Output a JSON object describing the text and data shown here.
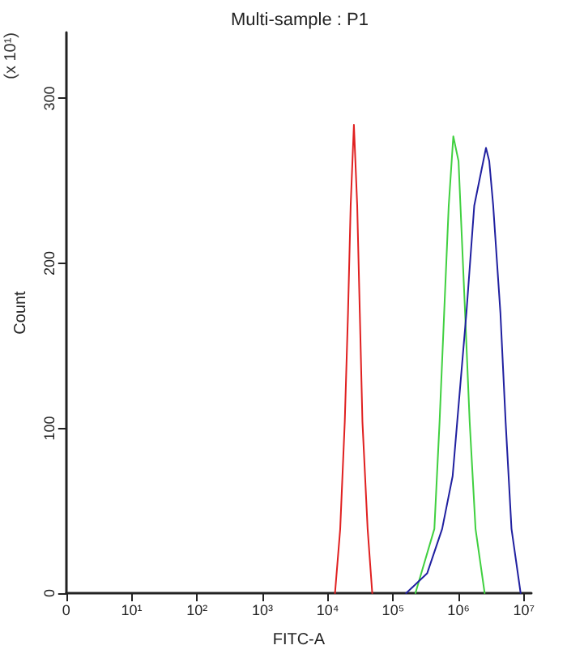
{
  "chart_data": {
    "type": "line",
    "title": "Multi-sample : P1",
    "xlabel": "FITC-A",
    "ylabel": "Count",
    "annotations": [
      "(x 10¹)"
    ],
    "log": "x",
    "grid": false,
    "marker": "none",
    "line_style": "solid",
    "xlim": [
      0,
      13000000
    ],
    "xticks": [
      0,
      {
        "value": 10,
        "label": "10¹"
      },
      {
        "value": 100,
        "label": "10²"
      },
      {
        "value": 1000,
        "label": "10³"
      },
      {
        "value": 10000,
        "label": "10⁴"
      },
      {
        "value": 100000,
        "label": "10⁵"
      },
      {
        "value": 1000000,
        "label": "10⁶"
      },
      {
        "value": 10000000,
        "label": "10⁷"
      }
    ],
    "ylim": [
      0,
      340
    ],
    "yticks": [
      0,
      100,
      200,
      300
    ],
    "series": [
      {
        "color": "#e02020",
        "x": [
          12900,
          15500,
          18200,
          20400,
          22400,
          25100,
          28200,
          30900,
          33900,
          40700,
          47900
        ],
        "values": [
          0,
          39,
          104,
          170,
          235,
          284,
          235,
          170,
          104,
          39,
          0
        ]
      },
      {
        "color": "#40d040",
        "x": [
          219000,
          427000,
          513000,
          603000,
          708000,
          832000,
          1000000,
          1070000,
          1260000,
          1480000,
          1820000,
          2510000
        ],
        "values": [
          0,
          39,
          104,
          170,
          235,
          277,
          262,
          235,
          170,
          104,
          39,
          0
        ]
      },
      {
        "color": "#2020a0",
        "x": [
          158000,
          331000,
          562000,
          813000,
          955000,
          1320000,
          1740000,
          2630000,
          2950000,
          3390000,
          4370000,
          5250000,
          6460000,
          8910000
        ],
        "values": [
          0,
          12,
          39,
          71,
          104,
          170,
          235,
          270,
          262,
          235,
          170,
          104,
          39,
          0
        ]
      }
    ]
  }
}
